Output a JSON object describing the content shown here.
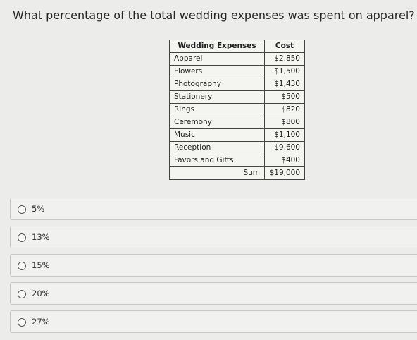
{
  "question": "What percentage of the total wedding expenses was spent on apparel?",
  "table": {
    "headers": [
      "Wedding Expenses",
      "Cost"
    ],
    "rows": [
      {
        "item": "Apparel",
        "cost": "$2,850"
      },
      {
        "item": "Flowers",
        "cost": "$1,500"
      },
      {
        "item": "Photography",
        "cost": "$1,430"
      },
      {
        "item": "Stationery",
        "cost": "$500"
      },
      {
        "item": "Rings",
        "cost": "$820"
      },
      {
        "item": "Ceremony",
        "cost": "$800"
      },
      {
        "item": "Music",
        "cost": "$1,100"
      },
      {
        "item": "Reception",
        "cost": "$9,600"
      },
      {
        "item": "Favors and Gifts",
        "cost": "$400"
      }
    ],
    "sum_label": "Sum",
    "sum_value": "$19,000"
  },
  "options": [
    "5%",
    "13%",
    "15%",
    "20%",
    "27%"
  ]
}
